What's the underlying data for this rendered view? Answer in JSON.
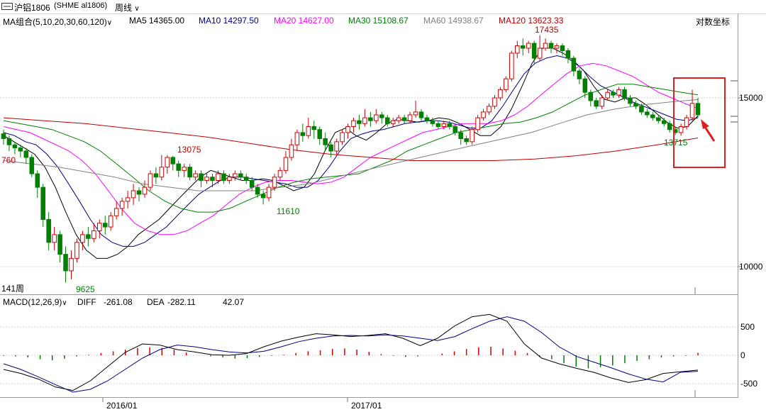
{
  "header": {
    "symbol": "沪铝1806",
    "code": "(SHME  al1806)",
    "period": "周线",
    "dropdown_icon": "chevron-down-icon"
  },
  "ma_legend": {
    "group": "MA组合(5,10,20,30,60,120)",
    "ma5": "MA5 14365.00",
    "ma10": "MA10 14297.50",
    "ma20": "MA20 14627.00",
    "ma30": "MA30 15108.67",
    "ma60": "MA60 14938.67",
    "ma120": "MA120 13623.33",
    "log_scale_button": "对数坐标"
  },
  "macd_legend": {
    "label": "MACD(12,26,9)",
    "diff_label": "DIFF",
    "diff_value": "-261.08",
    "dea_label": "DEA",
    "dea_value": "-282.11",
    "macd_value": "42.07"
  },
  "colors": {
    "ma5": "#000000",
    "ma10": "#000080",
    "ma20": "#ff00ff",
    "ma30": "#008000",
    "ma60": "#808080",
    "ma120": "#c00000",
    "up": "#d40000",
    "down": "#008000",
    "highlight_box": "#e02020"
  },
  "chart_data": {
    "type": "candlestick",
    "log_scale": true,
    "price_axis_ticks": [
      10000,
      15000
    ],
    "macd_axis_ticks": [
      500,
      0,
      -500
    ],
    "x_tick_labels": [
      "2016/01",
      "2017/01"
    ],
    "bars_count_label": "141周",
    "annotations": {
      "low_2016": "9625",
      "high_2016": "13075",
      "low_2017": "11610",
      "high_2017": "17435",
      "low_2018": "13715"
    },
    "left_partial_label": "760",
    "price_candles": [
      [
        13760,
        13600,
        13900,
        13400
      ],
      [
        13600,
        13400,
        13700,
        13200
      ],
      [
        13400,
        13300,
        13500,
        13100
      ],
      [
        13300,
        13200,
        13400,
        13000
      ],
      [
        13200,
        13000,
        13300,
        12800
      ],
      [
        13000,
        12500,
        13100,
        12400
      ],
      [
        12500,
        12100,
        12600,
        11800
      ],
      [
        12100,
        11200,
        12200,
        11000
      ],
      [
        11200,
        10600,
        11400,
        10400
      ],
      [
        10600,
        10800,
        11000,
        10400
      ],
      [
        10800,
        10300,
        10900,
        10100
      ],
      [
        10300,
        9900,
        10500,
        9625
      ],
      [
        9900,
        10200,
        10400,
        9700
      ],
      [
        10200,
        10600,
        10700,
        10100
      ],
      [
        10600,
        10800,
        10900,
        10400
      ],
      [
        10800,
        10700,
        11000,
        10500
      ],
      [
        10700,
        10900,
        11100,
        10600
      ],
      [
        10900,
        11100,
        11200,
        10700
      ],
      [
        11100,
        11000,
        11300,
        10800
      ],
      [
        11000,
        11300,
        11400,
        10900
      ],
      [
        11300,
        11500,
        11700,
        11200
      ],
      [
        11500,
        11700,
        11800,
        11300
      ],
      [
        11700,
        11800,
        12000,
        11500
      ],
      [
        11800,
        12000,
        12200,
        11600
      ],
      [
        12000,
        11900,
        12100,
        11700
      ],
      [
        11900,
        12100,
        12300,
        11800
      ],
      [
        12100,
        12500,
        12600,
        12000
      ],
      [
        12500,
        12400,
        12700,
        12200
      ],
      [
        12400,
        12700,
        13075,
        12300
      ],
      [
        12700,
        13000,
        13075,
        12500
      ],
      [
        13000,
        12800,
        13050,
        12600
      ],
      [
        12800,
        12600,
        12900,
        12400
      ],
      [
        12600,
        12700,
        12800,
        12400
      ],
      [
        12700,
        12400,
        12800,
        12300
      ],
      [
        12400,
        12500,
        12600,
        12300
      ],
      [
        12500,
        12300,
        12600,
        12100
      ],
      [
        12300,
        12400,
        12500,
        12200
      ],
      [
        12400,
        12300,
        12500,
        12100
      ],
      [
        12300,
        12500,
        12600,
        12200
      ],
      [
        12500,
        12300,
        12600,
        12200
      ],
      [
        12300,
        12400,
        12500,
        12200
      ],
      [
        12400,
        12500,
        12600,
        12300
      ],
      [
        12500,
        12400,
        12600,
        12300
      ],
      [
        12400,
        12300,
        12500,
        12200
      ],
      [
        12300,
        12100,
        12400,
        12000
      ],
      [
        12100,
        11900,
        12200,
        11800
      ],
      [
        11900,
        11800,
        12000,
        11610
      ],
      [
        11800,
        12100,
        12200,
        11700
      ],
      [
        12100,
        12400,
        12500,
        12000
      ],
      [
        12400,
        12600,
        12700,
        12300
      ],
      [
        12600,
        13000,
        13200,
        12500
      ],
      [
        13000,
        13400,
        13600,
        12900
      ],
      [
        13400,
        13800,
        13900,
        13200
      ],
      [
        13800,
        13700,
        14100,
        13500
      ],
      [
        13700,
        14000,
        14300,
        13600
      ],
      [
        14000,
        13900,
        14200,
        13600
      ],
      [
        13900,
        13600,
        14000,
        13400
      ],
      [
        13600,
        13400,
        13800,
        13200
      ],
      [
        13400,
        13200,
        13500,
        13000
      ],
      [
        13200,
        13500,
        13600,
        13100
      ],
      [
        13500,
        13800,
        13900,
        13400
      ],
      [
        13800,
        14000,
        14100,
        13600
      ],
      [
        14000,
        14200,
        14300,
        13800
      ],
      [
        14200,
        14100,
        14400,
        13900
      ],
      [
        14100,
        14300,
        14600,
        14000
      ],
      [
        14300,
        14200,
        14500,
        14000
      ],
      [
        14200,
        14400,
        14600,
        14100
      ],
      [
        14400,
        14300,
        14500,
        14100
      ],
      [
        14300,
        14100,
        14400,
        14000
      ],
      [
        14100,
        14200,
        14300,
        14000
      ],
      [
        14200,
        14300,
        14400,
        14100
      ],
      [
        14300,
        14200,
        14400,
        14100
      ],
      [
        14200,
        14400,
        14500,
        14100
      ],
      [
        14400,
        14500,
        14900,
        14300
      ],
      [
        14500,
        14300,
        14600,
        14200
      ],
      [
        14300,
        14200,
        14400,
        14100
      ],
      [
        14200,
        14100,
        14300,
        14000
      ],
      [
        14100,
        14000,
        14200,
        13900
      ],
      [
        14000,
        14100,
        14200,
        13900
      ],
      [
        14100,
        14000,
        14200,
        13900
      ],
      [
        14000,
        13800,
        14100,
        13700
      ],
      [
        13800,
        13600,
        13900,
        13400
      ],
      [
        13600,
        13500,
        13700,
        13400
      ],
      [
        13500,
        13900,
        14000,
        13400
      ],
      [
        13900,
        14300,
        14400,
        13800
      ],
      [
        14300,
        14500,
        14600,
        14200
      ],
      [
        14500,
        14700,
        14800,
        14400
      ],
      [
        14700,
        15000,
        15100,
        14600
      ],
      [
        15000,
        15300,
        15400,
        14900
      ],
      [
        15300,
        15700,
        15800,
        15200
      ],
      [
        15700,
        16700,
        16800,
        15600
      ],
      [
        16700,
        17000,
        17200,
        16500
      ],
      [
        17000,
        16900,
        17300,
        16600
      ],
      [
        16900,
        17100,
        17200,
        16700
      ],
      [
        17100,
        16500,
        17200,
        16300
      ],
      [
        16500,
        16900,
        17435,
        16400
      ],
      [
        16900,
        17100,
        17300,
        16800
      ],
      [
        17100,
        16900,
        17200,
        16700
      ],
      [
        16900,
        17000,
        17100,
        16700
      ],
      [
        17000,
        16800,
        17100,
        16600
      ],
      [
        16800,
        16500,
        16900,
        16300
      ],
      [
        16500,
        16000,
        16600,
        15800
      ],
      [
        16000,
        15700,
        16100,
        15500
      ],
      [
        15700,
        15200,
        15800,
        15000
      ],
      [
        15200,
        14900,
        15300,
        14700
      ],
      [
        14900,
        14700,
        15000,
        14600
      ],
      [
        14700,
        15000,
        15100,
        14600
      ],
      [
        15000,
        15200,
        15300,
        14900
      ],
      [
        15200,
        15100,
        15300,
        15000
      ],
      [
        15100,
        15300,
        15400,
        15000
      ],
      [
        15300,
        15000,
        15400,
        14900
      ],
      [
        15000,
        14800,
        15100,
        14700
      ],
      [
        14800,
        14700,
        14900,
        14600
      ],
      [
        14700,
        14500,
        14800,
        14400
      ],
      [
        14500,
        14400,
        14600,
        14300
      ],
      [
        14400,
        14300,
        14500,
        14200
      ],
      [
        14300,
        14200,
        14400,
        14100
      ],
      [
        14200,
        14100,
        14300,
        14000
      ],
      [
        14100,
        13900,
        14200,
        13800
      ],
      [
        13900,
        13800,
        14000,
        13715
      ],
      [
        13800,
        14000,
        14100,
        13700
      ],
      [
        14000,
        14300,
        14400,
        13900
      ],
      [
        14300,
        14800,
        15300,
        14200
      ],
      [
        14800,
        14400,
        15000,
        14300
      ]
    ],
    "ma_series": [
      {
        "name": "MA5",
        "values": [
          13700,
          13500,
          13300,
          13100,
          12700,
          12100,
          11400,
          10800,
          10400,
          10200,
          10200,
          10300,
          10500,
          10800,
          11000,
          11200,
          11500,
          11800,
          12100,
          12400,
          12600,
          12500,
          12400,
          12300,
          12300,
          12350,
          12300,
          12150,
          12000,
          12100,
          12500,
          13200,
          13800,
          13950,
          13700,
          13550,
          13800,
          14100,
          14250,
          14200,
          14150,
          14200,
          14300,
          14250,
          14100,
          13900,
          13700,
          13700,
          14000,
          14600,
          15400,
          16300,
          16900,
          16900,
          16700,
          16400,
          16000,
          15400,
          14950,
          14850,
          15000,
          15000,
          14750,
          14450,
          14150,
          13950,
          14000,
          14365
        ]
      },
      {
        "name": "MA10",
        "values": [
          13800,
          13700,
          13500,
          13400,
          13100,
          12700,
          12200,
          11700,
          11200,
          10800,
          10600,
          10500,
          10500,
          10600,
          10800,
          11000,
          11300,
          11600,
          11900,
          12100,
          12300,
          12400,
          12400,
          12350,
          12300,
          12250,
          12200,
          12100,
          12100,
          12300,
          12700,
          13200,
          13600,
          13750,
          13850,
          13900,
          14000,
          14100,
          14150,
          14200,
          14200,
          14150,
          14050,
          13950,
          13950,
          14200,
          14700,
          15300,
          15900,
          16300,
          16500,
          16600,
          16500,
          16200,
          15800,
          15450,
          15250,
          15050,
          14850,
          14700,
          14550,
          14400,
          14250,
          14200,
          14297.5
        ]
      },
      {
        "name": "MA20",
        "values": [
          14000,
          13900,
          13800,
          13600,
          13400,
          13200,
          12900,
          12500,
          12000,
          11500,
          11100,
          10900,
          10800,
          10800,
          10900,
          11100,
          11300,
          11600,
          11900,
          12100,
          12250,
          12300,
          12300,
          12250,
          12200,
          12250,
          12400,
          12700,
          13000,
          13200,
          13400,
          13600,
          13800,
          13900,
          14000,
          14100,
          14100,
          14100,
          14200,
          14400,
          14700,
          15100,
          15500,
          15900,
          16200,
          16300,
          16200,
          16000,
          15800,
          15500,
          15200,
          15000,
          14800,
          14627
        ]
      },
      {
        "name": "MA30",
        "values": [
          14200,
          14100,
          14000,
          13900,
          13700,
          13500,
          13200,
          12800,
          12400,
          12000,
          11700,
          11500,
          11400,
          11400,
          11500,
          11700,
          11900,
          12100,
          12250,
          12350,
          12400,
          12450,
          12500,
          12700,
          12900,
          13200,
          13400,
          13600,
          13800,
          13900,
          14000,
          14100,
          14150,
          14300,
          14500,
          14800,
          15100,
          15300,
          15500,
          15500,
          15400,
          15300,
          15200,
          15108.67
        ]
      },
      {
        "name": "MA60",
        "values": [
          12900,
          12800,
          12700,
          12550,
          12400,
          12200,
          12100,
          12000,
          12000,
          12000,
          12100,
          12200,
          12400,
          12600,
          12800,
          13000,
          13200,
          13400,
          13600,
          13800,
          14100,
          14400,
          14600,
          14750,
          14850,
          14938.67
        ]
      },
      {
        "name": "MA120",
        "values": [
          14300,
          14200,
          14100,
          13950,
          13800,
          13650,
          13450,
          13250,
          13100,
          13000,
          12900,
          12900,
          12900,
          12950,
          13050,
          13200,
          13400,
          13623.33
        ]
      }
    ],
    "macd": {
      "diff": [
        -250,
        -320,
        -420,
        -560,
        -620,
        -450,
        -200,
        50,
        200,
        180,
        100,
        60,
        10,
        0,
        30,
        150,
        250,
        320,
        380,
        360,
        330,
        350,
        380,
        300,
        170,
        300,
        520,
        680,
        720,
        600,
        200,
        -50,
        -150,
        -230,
        -300,
        -400,
        -480,
        -430,
        -320,
        -290,
        -261.08
      ],
      "dea": [
        -150,
        -250,
        -380,
        -520,
        -650,
        -600,
        -450,
        -250,
        -50,
        100,
        180,
        150,
        100,
        60,
        40,
        70,
        150,
        240,
        300,
        340,
        350,
        340,
        360,
        340,
        300,
        260,
        330,
        470,
        600,
        680,
        600,
        400,
        150,
        -20,
        -120,
        -220,
        -330,
        -420,
        -470,
        -300,
        -282.11
      ],
      "hist": [
        -10,
        -20,
        -40,
        -70,
        -90,
        -60,
        -20,
        10,
        40,
        70,
        100,
        130,
        140,
        130,
        100,
        50,
        0,
        -20,
        -40,
        -60,
        -50,
        -30,
        -10,
        10,
        40,
        70,
        90,
        110,
        120,
        100,
        60,
        20,
        -10,
        -30,
        -20,
        0,
        30,
        70,
        110,
        140,
        150,
        120,
        80,
        40,
        -30,
        -70,
        -140,
        -200,
        -230,
        -210,
        -180,
        -140,
        -100,
        -70,
        -40,
        -20,
        -10,
        42.07
      ]
    }
  }
}
